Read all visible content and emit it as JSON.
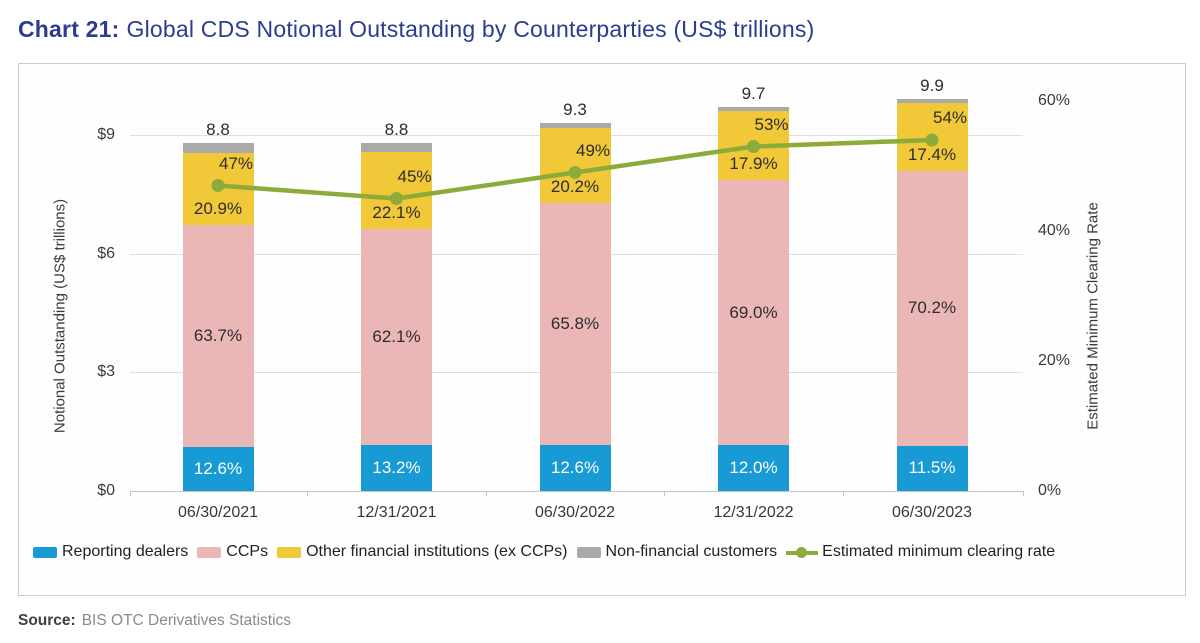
{
  "title": {
    "prefix": "Chart 21:",
    "text": "Global CDS Notional Outstanding by Counterparties (US$ trillions)"
  },
  "source": {
    "label": "Source:",
    "text": "BIS OTC Derivatives Statistics"
  },
  "colors": {
    "title_blue": "#2b3d8f",
    "grid": "#dfdfdf",
    "axis_text": "#3b3b3b"
  },
  "chart_data": {
    "type": "bar",
    "stacked": true,
    "title": "Chart 21: Global CDS Notional Outstanding by Counterparties (US$ trillions)",
    "categories": [
      "06/30/2021",
      "12/31/2021",
      "06/30/2022",
      "12/31/2022",
      "06/30/2023"
    ],
    "totals": [
      8.8,
      8.8,
      9.3,
      9.7,
      9.9
    ],
    "total_labels": [
      "8.8",
      "8.8",
      "9.3",
      "9.7",
      "9.9"
    ],
    "series": [
      {
        "name": "Reporting dealers",
        "color": "#189ad4",
        "pct": [
          12.6,
          13.2,
          12.6,
          12.0,
          11.5
        ],
        "labels": [
          "12.6%",
          "13.2%",
          "12.6%",
          "12.0%",
          "11.5%"
        ],
        "label_color": "#ffffff"
      },
      {
        "name": "CCPs",
        "color": "#ebb7b6",
        "pct": [
          63.7,
          62.1,
          65.8,
          69.0,
          70.2
        ],
        "labels": [
          "63.7%",
          "62.1%",
          "65.8%",
          "69.0%",
          "70.2%"
        ],
        "label_color": "#2d2d2d"
      },
      {
        "name": "Other financial institutions (ex CCPs)",
        "color": "#f0c838",
        "pct": [
          20.9,
          22.1,
          20.2,
          17.9,
          17.4
        ],
        "labels": [
          "20.9%",
          "22.1%",
          "20.2%",
          "17.9%",
          "17.4%"
        ],
        "label_color": "#2d2d2d"
      },
      {
        "name": "Non-financial customers",
        "color": "#aaaaaa",
        "pct": [
          2.8,
          2.6,
          1.4,
          1.1,
          0.9
        ],
        "labels": null,
        "label_color": "#2d2d2d"
      }
    ],
    "line": {
      "name": "Estimated minimum clearing rate",
      "color": "#8cab3b",
      "values": [
        47,
        45,
        49,
        53,
        54
      ],
      "labels": [
        "47%",
        "45%",
        "49%",
        "53%",
        "54%"
      ]
    },
    "left_axis": {
      "title": "Notional Outstanding (US$ trillions)",
      "ticks": [
        "$0",
        "$3",
        "$6",
        "$9"
      ],
      "tick_values": [
        0,
        3,
        6,
        9
      ],
      "ylim": [
        0,
        9
      ]
    },
    "right_axis": {
      "title": "Estimated Minimum Clearing Rate",
      "ticks": [
        "0%",
        "20%",
        "40%",
        "60%"
      ],
      "tick_values": [
        0,
        20,
        40,
        60
      ],
      "ylim": [
        0,
        60
      ]
    },
    "grid": true,
    "legend_position": "bottom"
  }
}
